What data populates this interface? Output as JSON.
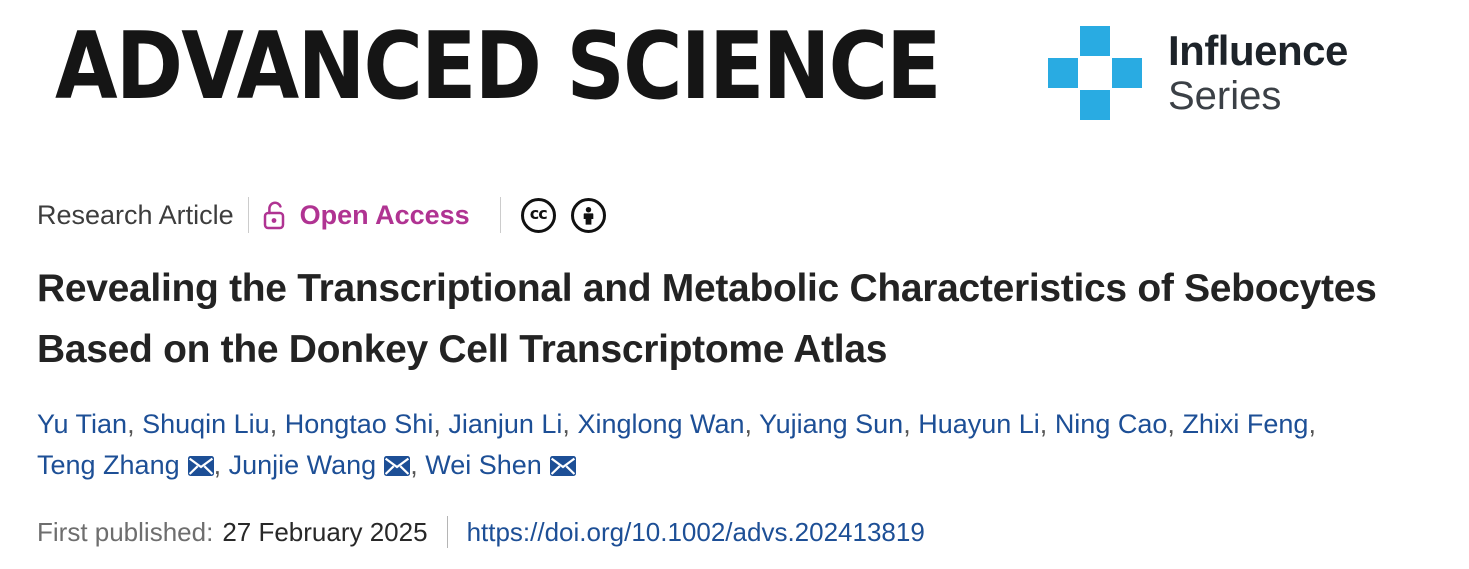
{
  "colors": {
    "badge_blue": "#29abe2",
    "open_access_magenta": "#b03392",
    "link_blue": "#1d4f96"
  },
  "masthead": {
    "journal_name": "ADVANCED SCIENCE",
    "series_badge": {
      "line1": "Influence",
      "line2": "Series"
    }
  },
  "meta_bar": {
    "article_type": "Research Article",
    "open_access_label": "Open Access",
    "license": {
      "cc_text": "cc"
    }
  },
  "title": {
    "text": "Revealing the Transcriptional and Metabolic Characteristics of Sebocytes Based on the Donkey Cell Transcriptome Atlas"
  },
  "authors": {
    "separator": ", ",
    "list": [
      {
        "name": "Yu Tian",
        "email": false
      },
      {
        "name": "Shuqin Liu",
        "email": false
      },
      {
        "name": "Hongtao Shi",
        "email": false
      },
      {
        "name": "Jianjun Li",
        "email": false
      },
      {
        "name": "Xinglong Wan",
        "email": false
      },
      {
        "name": "Yujiang Sun",
        "email": false
      },
      {
        "name": "Huayun Li",
        "email": false
      },
      {
        "name": "Ning Cao",
        "email": false
      },
      {
        "name": "Zhixi Feng",
        "email": false
      },
      {
        "name": "Teng Zhang",
        "email": true
      },
      {
        "name": "Junjie Wang",
        "email": true
      },
      {
        "name": "Wei Shen",
        "email": true
      }
    ]
  },
  "publication": {
    "label": "First published:",
    "date": "27 February 2025",
    "doi": "https://doi.org/10.1002/advs.202413819"
  }
}
